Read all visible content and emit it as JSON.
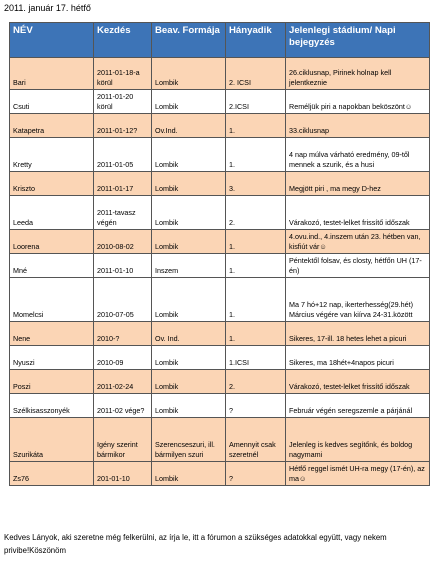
{
  "date": "2011. január 17. hétfő",
  "headers": [
    "NÉV",
    "Kezdés",
    "Beav. Formája",
    "Hányadik",
    "Jelenlegi stádium/ Napi bejegyzés"
  ],
  "rows": [
    {
      "style": "peach",
      "name": "Bari",
      "start": "2011-01-18-a körül",
      "form": "Lombik",
      "count": "2. ICSI",
      "status": "26.ciklusnap, Pirinek holnap kell jelentkeznie"
    },
    {
      "style": "white",
      "name": "Csuti",
      "start": "2011-01-20 körül",
      "form": "Lombik",
      "count": "2.ICSI",
      "status": "Reméljük piri a napokban beköszönt☺"
    },
    {
      "style": "peach",
      "name": "Katapetra",
      "start": "2011-01-12?",
      "form": "Ov.Ind.",
      "count": "1.",
      "status": "33.ciklusnap"
    },
    {
      "style": "white",
      "name": "Kretty",
      "start": "2011-01-05",
      "form": "Lombik",
      "count": "1.",
      "status": "4 nap múlva várható eredmény, 09-től mennek a szurik, és a husi"
    },
    {
      "style": "peach",
      "name": "Kriszto",
      "start": "2011-01-17",
      "form": "Lombik",
      "count": "3.",
      "status": "Megjött piri , ma megy D-hez"
    },
    {
      "style": "white",
      "name": "Leeda",
      "start": "2011-tavasz végén",
      "form": "Lombik",
      "count": "2.",
      "status": "Várakozó, testet-lelket frissítő időszak"
    },
    {
      "style": "peach",
      "name": "Loorena",
      "start": "2010-08-02",
      "form": "Lombik",
      "count": "1.",
      "status": "4.ovu.ind., 4.inszem után 23. hétben van, kisfiút vár☺"
    },
    {
      "style": "white",
      "name": "Mné",
      "start": "2011-01-10",
      "form": "Inszem",
      "count": "1.",
      "status": "Péntektől folsav, és closty, hétfőn UH (17-én)"
    },
    {
      "style": "white",
      "name": "Momelcsi",
      "start": "2010-07-05",
      "form": "Lombik",
      "count": "1.",
      "status": "Ma 7 hó+12 nap, ikerterhesség(29.hét) Március végére van kiírva 24-31.között"
    },
    {
      "style": "peach",
      "name": "Nene",
      "start": "2010-?",
      "form": "Ov. Ind.",
      "count": "1.",
      "status": "Sikeres, 17-ill. 18 hetes lehet a picuri"
    },
    {
      "style": "white",
      "name": "Nyuszi",
      "start": "2010-09",
      "form": "Lombik",
      "count": "1.ICSI",
      "status": "Sikeres, ma 18hét+4napos picuri"
    },
    {
      "style": "peach",
      "name": "Poszi",
      "start": "2011-02-24",
      "form": "Lombik",
      "count": "2.",
      "status": "Várakozó, testet-lelket frissítő időszak"
    },
    {
      "style": "white",
      "name": "Szélkisasszonyék",
      "start": "2011-02 vége?",
      "form": "Lombik",
      "count": "?",
      "status": "Február végén seregszemle a párjánál"
    },
    {
      "style": "peach",
      "name": "Szurikáta",
      "start": "Igény szerint bármikor",
      "form": "Szerencseszuri, ill. bármilyen szuri",
      "count": "Amennyit csak szeretnél",
      "status": "Jelenleg is kedves segítőnk, és boldog nagymami"
    },
    {
      "style": "peach",
      "name": "Zs76",
      "start": "201-01-10",
      "form": "Lombik",
      "count": "?",
      "status": "Hétfő reggel ismét UH-ra megy (17-én), az ma☺"
    }
  ],
  "footer": "Kedves Lányok, aki szeretne még felkerülni, az írja le, itt a fórumon a szükséges adatokkal együtt, vagy nekem privibe!Köszönöm"
}
